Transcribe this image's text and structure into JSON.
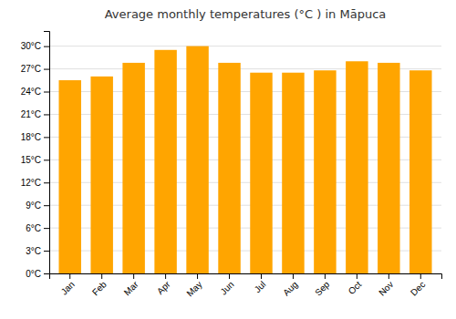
{
  "chart_data": {
    "type": "bar",
    "title": "Average monthly temperatures (°C ) in Māpuca",
    "categories": [
      "Jan",
      "Feb",
      "Mar",
      "Apr",
      "May",
      "Jun",
      "Jul",
      "Aug",
      "Sep",
      "Oct",
      "Nov",
      "Dec"
    ],
    "values": [
      25.5,
      26.0,
      27.8,
      29.5,
      30.0,
      27.8,
      26.5,
      26.5,
      26.8,
      28.0,
      27.8,
      26.8
    ],
    "color": "#FFA500",
    "ylim": [
      0,
      32
    ],
    "yticks": [
      {
        "value": 0,
        "label": "0°C"
      },
      {
        "value": 3,
        "label": "3°C"
      },
      {
        "value": 6,
        "label": "6°C"
      },
      {
        "value": 9,
        "label": "9°C"
      },
      {
        "value": 12,
        "label": "12°C"
      },
      {
        "value": 15,
        "label": "15°C"
      },
      {
        "value": 18,
        "label": "18°C"
      },
      {
        "value": 21,
        "label": "21°C"
      },
      {
        "value": 24,
        "label": "24°C"
      },
      {
        "value": 27,
        "label": "27°C"
      },
      {
        "value": 30,
        "label": "30°C"
      }
    ],
    "grid": true
  }
}
